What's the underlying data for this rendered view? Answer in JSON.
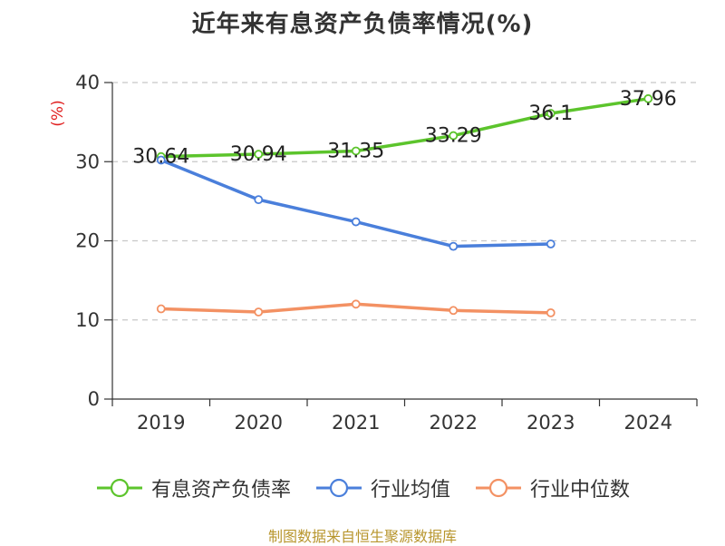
{
  "chart_data": {
    "type": "line",
    "title": "近年来有息资产负债率情况(%)",
    "ylabel": "(%)",
    "xlabel": "",
    "ylim": [
      0,
      40
    ],
    "yticks": [
      0,
      10,
      20,
      30,
      40
    ],
    "grid": true,
    "legend_position": "bottom",
    "categories": [
      "2019",
      "2020",
      "2021",
      "2022",
      "2023",
      "2024"
    ],
    "series": [
      {
        "name": "有息资产负债率",
        "color": "#5cc42c",
        "values": [
          30.64,
          30.94,
          31.35,
          33.29,
          36.1,
          37.96
        ],
        "labels": [
          "30.64",
          "30.94",
          "31.35",
          "33.29",
          "36.1",
          "37.96"
        ]
      },
      {
        "name": "行业均值",
        "color": "#4a7fdb",
        "values": [
          30.2,
          25.2,
          22.4,
          19.3,
          19.6,
          null
        ]
      },
      {
        "name": "行业中位数",
        "color": "#f39163",
        "values": [
          11.4,
          11.0,
          12.0,
          11.2,
          10.9,
          null
        ]
      }
    ],
    "source": "制图数据来自恒生聚源数据库"
  }
}
